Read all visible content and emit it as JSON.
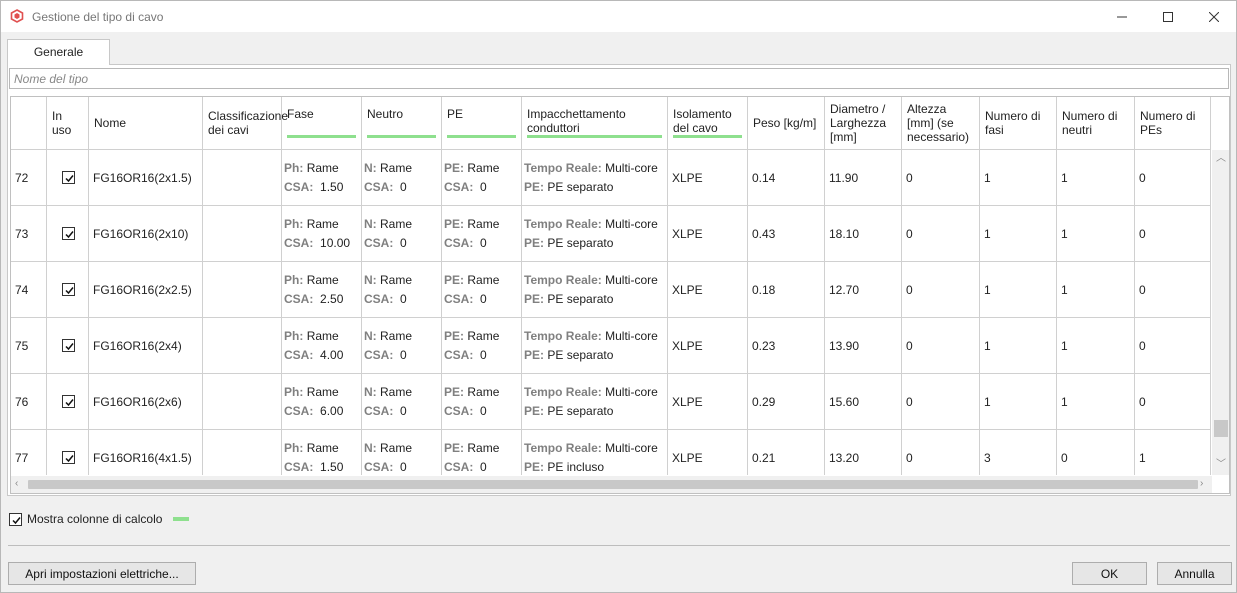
{
  "window": {
    "title": "Gestione del tipo di cavo"
  },
  "tabs": [
    {
      "label": "Generale"
    }
  ],
  "type_name_field": {
    "placeholder": "Nome del tipo",
    "value": ""
  },
  "table": {
    "columns": {
      "in_use": "In uso",
      "name": "Nome",
      "classification": "Classificazione dei cavi",
      "phase": "Fase",
      "neutral": "Neutro",
      "pe": "PE",
      "packing": "Impacchettamento conduttori",
      "insulation": "Isolamento del cavo",
      "weight": "Peso [kg/m]",
      "diameter": "Diametro / Larghezza [mm]",
      "height": "Altezza [mm] (se necessario)",
      "num_phases": "Numero di fasi",
      "num_neutrals": "Numero di neutri",
      "num_pes": "Numero di PEs"
    },
    "labels": {
      "ph": "Ph:",
      "csa": "CSA:",
      "n": "N:",
      "pe": "PE:",
      "tempo_reale": "Tempo Reale:"
    },
    "rows": [
      {
        "index": "72",
        "in_use": true,
        "name": "FG16OR16(2x1.5)",
        "classification": "",
        "phase_material": "Rame",
        "phase_csa": "1.50",
        "neutral_material": "Rame",
        "neutral_csa": "0",
        "pe_material": "Rame",
        "pe_csa": "0",
        "packing_mode": "Multi-core",
        "packing_pe": "PE separato",
        "insulation": "XLPE",
        "weight": "0.14",
        "diameter": "11.90",
        "height": "0",
        "num_phases": "1",
        "num_neutrals": "1",
        "num_pes": "0"
      },
      {
        "index": "73",
        "in_use": true,
        "name": "FG16OR16(2x10)",
        "classification": "",
        "phase_material": "Rame",
        "phase_csa": "10.00",
        "neutral_material": "Rame",
        "neutral_csa": "0",
        "pe_material": "Rame",
        "pe_csa": "0",
        "packing_mode": "Multi-core",
        "packing_pe": "PE separato",
        "insulation": "XLPE",
        "weight": "0.43",
        "diameter": "18.10",
        "height": "0",
        "num_phases": "1",
        "num_neutrals": "1",
        "num_pes": "0"
      },
      {
        "index": "74",
        "in_use": true,
        "name": "FG16OR16(2x2.5)",
        "classification": "",
        "phase_material": "Rame",
        "phase_csa": "2.50",
        "neutral_material": "Rame",
        "neutral_csa": "0",
        "pe_material": "Rame",
        "pe_csa": "0",
        "packing_mode": "Multi-core",
        "packing_pe": "PE separato",
        "insulation": "XLPE",
        "weight": "0.18",
        "diameter": "12.70",
        "height": "0",
        "num_phases": "1",
        "num_neutrals": "1",
        "num_pes": "0"
      },
      {
        "index": "75",
        "in_use": true,
        "name": "FG16OR16(2x4)",
        "classification": "",
        "phase_material": "Rame",
        "phase_csa": "4.00",
        "neutral_material": "Rame",
        "neutral_csa": "0",
        "pe_material": "Rame",
        "pe_csa": "0",
        "packing_mode": "Multi-core",
        "packing_pe": "PE separato",
        "insulation": "XLPE",
        "weight": "0.23",
        "diameter": "13.90",
        "height": "0",
        "num_phases": "1",
        "num_neutrals": "1",
        "num_pes": "0"
      },
      {
        "index": "76",
        "in_use": true,
        "name": "FG16OR16(2x6)",
        "classification": "",
        "phase_material": "Rame",
        "phase_csa": "6.00",
        "neutral_material": "Rame",
        "neutral_csa": "0",
        "pe_material": "Rame",
        "pe_csa": "0",
        "packing_mode": "Multi-core",
        "packing_pe": "PE separato",
        "insulation": "XLPE",
        "weight": "0.29",
        "diameter": "15.60",
        "height": "0",
        "num_phases": "1",
        "num_neutrals": "1",
        "num_pes": "0"
      },
      {
        "index": "77",
        "in_use": true,
        "name": "FG16OR16(4x1.5)",
        "classification": "",
        "phase_material": "Rame",
        "phase_csa": "1.50",
        "neutral_material": "Rame",
        "neutral_csa": "0",
        "pe_material": "Rame",
        "pe_csa": "0",
        "packing_mode": "Multi-core",
        "packing_pe": "PE incluso",
        "insulation": "XLPE",
        "weight": "0.21",
        "diameter": "13.20",
        "height": "0",
        "num_phases": "3",
        "num_neutrals": "0",
        "num_pes": "1"
      }
    ]
  },
  "options": {
    "show_calc_columns_label": "Mostra colonne di calcolo",
    "show_calc_columns_checked": true
  },
  "buttons": {
    "electrical_settings": "Apri impostazioni elettriche...",
    "ok": "OK",
    "cancel": "Annulla"
  },
  "colors": {
    "calc_column_accent": "#8ee08e",
    "app_icon": "#e05050"
  }
}
